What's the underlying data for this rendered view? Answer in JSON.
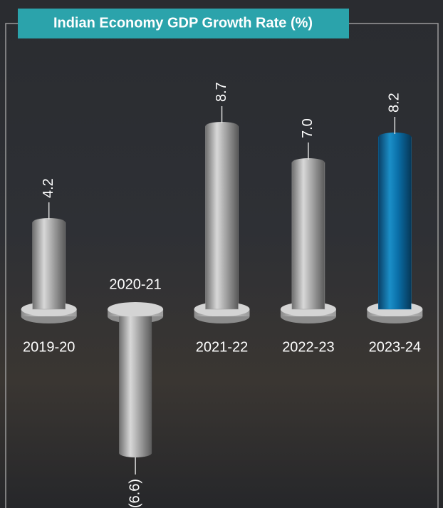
{
  "chart_data": {
    "type": "bar",
    "title": "Indian Economy GDP Growth Rate (%)",
    "categories": [
      "2019-20",
      "2020-21",
      "2021-22",
      "2022-23",
      "2023-24"
    ],
    "values": [
      4.2,
      -6.6,
      8.7,
      7.0,
      8.2
    ],
    "value_labels": [
      "4.2",
      "(6.6)",
      "8.7",
      "7.0",
      "8.2"
    ],
    "colors": [
      "#9a9a9a",
      "#9a9a9a",
      "#9a9a9a",
      "#9a9a9a",
      "#0a6fa8"
    ]
  }
}
